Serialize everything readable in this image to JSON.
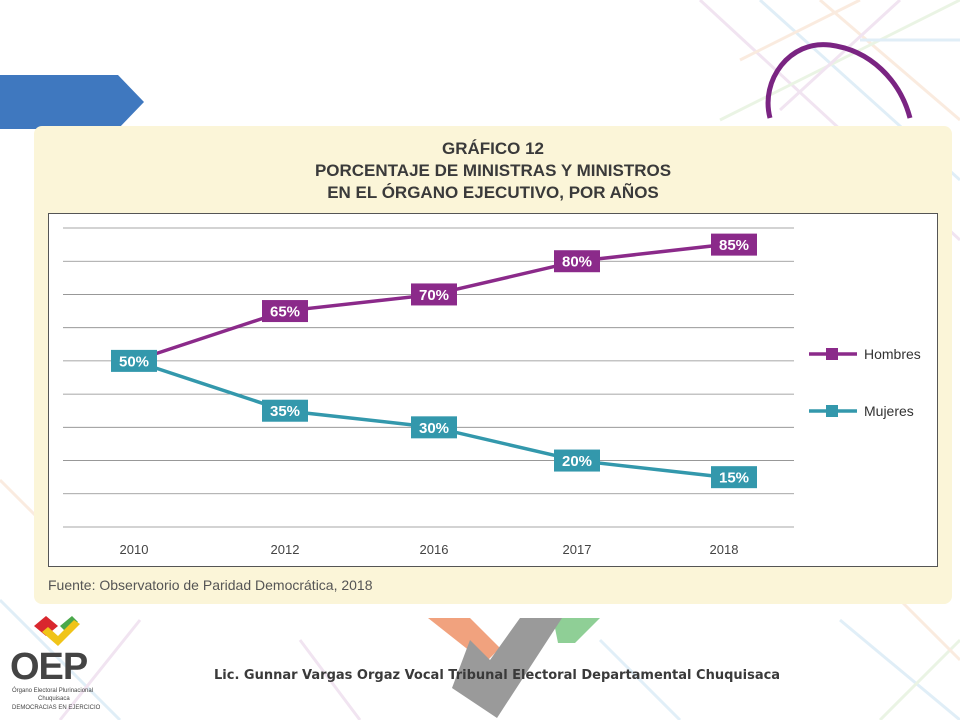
{
  "chart_data": {
    "type": "line",
    "title_line1": "GRÁFICO 12",
    "title_line2": "PORCENTAJE DE MINISTRAS Y MINISTROS",
    "title_line3": "EN EL ÓRGANO EJECUTIVO, POR AÑOS",
    "categories": [
      "2010",
      "2012",
      "2016",
      "2017",
      "2018"
    ],
    "series": [
      {
        "name": "Hombres",
        "values": [
          50,
          65,
          70,
          80,
          85
        ],
        "labels": [
          "50%",
          "65%",
          "70%",
          "80%",
          "85%"
        ],
        "color": "#8b2a8a"
      },
      {
        "name": "Mujeres",
        "values": [
          50,
          35,
          30,
          20,
          15
        ],
        "labels": [
          "50%",
          "35%",
          "30%",
          "20%",
          "15%"
        ],
        "color": "#3398ac"
      }
    ],
    "ylim": [
      0,
      90
    ],
    "grid": true,
    "legend": "right",
    "xlabel": "",
    "ylabel": ""
  },
  "source": "Fuente: Observatorio de Paridad Democrática, 2018",
  "footer": "Lic. Gunnar Vargas Orgaz Vocal Tribunal Electoral Departamental Chuquisaca",
  "logo": {
    "name": "OEP",
    "line1": "Órgano Electoral Plurinacional",
    "line2": "Chuquisaca",
    "line3": "DEMOCRACIAS EN EJERCICIO"
  },
  "colors": {
    "panel": "#fbf5d8",
    "accent_blue": "#3f78bf",
    "hombres": "#8b2a8a",
    "mujeres": "#3398ac"
  }
}
